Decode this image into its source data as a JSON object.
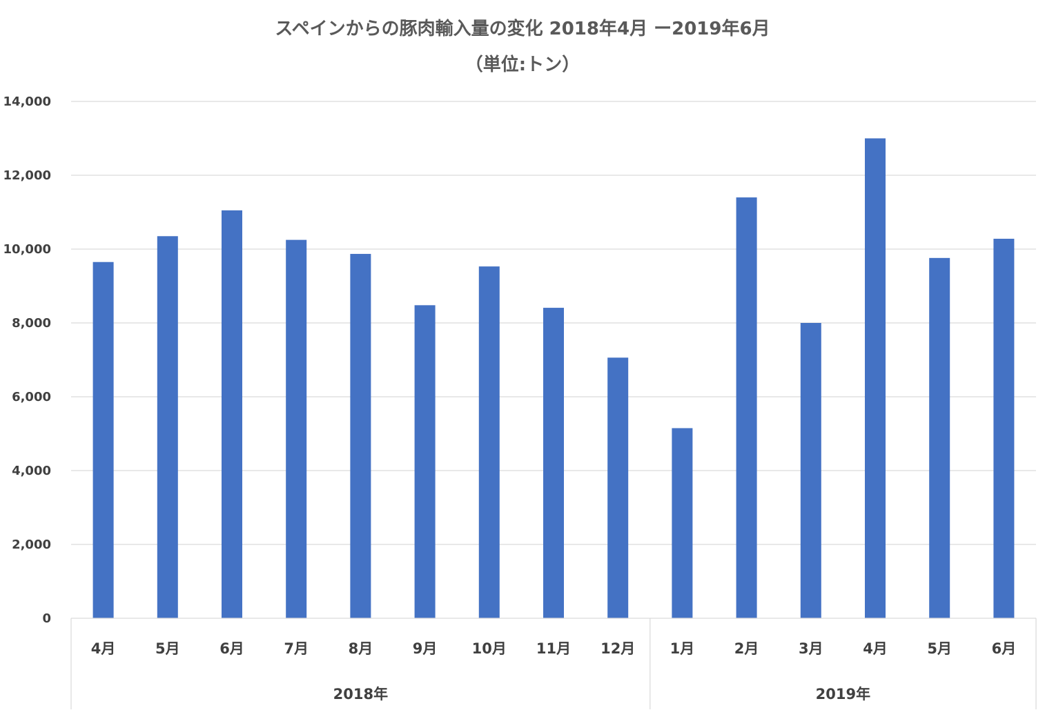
{
  "chart_data": {
    "type": "bar",
    "title": "スペインからの豚肉輸入量の変化  2018年4月 ー2019年6月",
    "subtitle": "（単位:トン）",
    "categories": [
      "4月",
      "5月",
      "6月",
      "7月",
      "8月",
      "9月",
      "10月",
      "11月",
      "12月",
      "1月",
      "2月",
      "3月",
      "4月",
      "5月",
      "6月"
    ],
    "groups": [
      {
        "label": "2018年",
        "count": 9
      },
      {
        "label": "2019年",
        "count": 6
      }
    ],
    "series": [
      {
        "name": "豚肉輸入量",
        "values": [
          9650,
          10350,
          11050,
          10250,
          9870,
          8480,
          9530,
          8410,
          7060,
          5150,
          11400,
          8000,
          13000,
          9760,
          10280
        ]
      }
    ],
    "ylim": [
      0,
      14000
    ],
    "yticks": [
      "0",
      "2,000",
      "4,000",
      "6,000",
      "8,000",
      "10,000",
      "12,000",
      "14,000"
    ],
    "ytick_values": [
      0,
      2000,
      4000,
      6000,
      8000,
      10000,
      12000,
      14000
    ],
    "xlabel": "",
    "ylabel": "",
    "grid": true,
    "bar_color": "#4472c4"
  }
}
